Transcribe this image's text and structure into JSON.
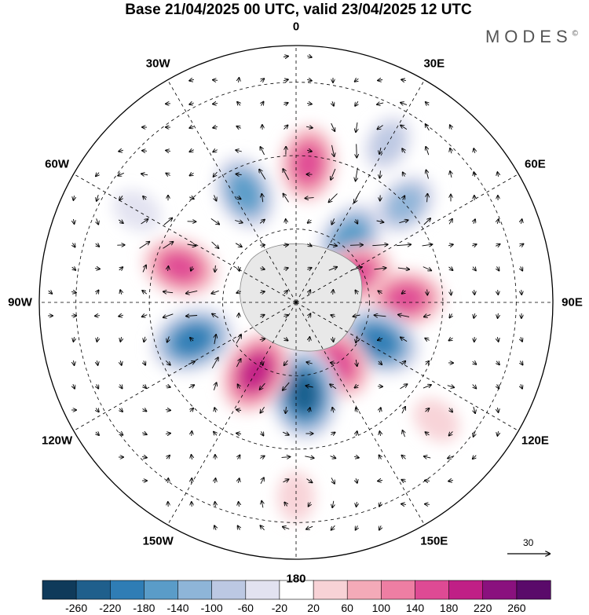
{
  "title": "Base 21/04/2025 00 UTC, valid 23/04/2025 12 UTC",
  "logo": "MODES",
  "logo_mark": "©",
  "longitude_labels": [
    "0",
    "30E",
    "60E",
    "90E",
    "120E",
    "150E",
    "180",
    "150W",
    "120W",
    "90W",
    "60W",
    "30W"
  ],
  "reference_vector": "30",
  "colorbar": {
    "ticks": [
      "-260",
      "-220",
      "-180",
      "-140",
      "-100",
      "-60",
      "-20",
      "20",
      "60",
      "100",
      "140",
      "180",
      "220",
      "260"
    ],
    "colors": [
      "#0f3a5a",
      "#1f5f8c",
      "#2f7db5",
      "#5a9cc8",
      "#8eb5d8",
      "#bcc8e3",
      "#e2e2f0",
      "#ffffff",
      "#f8d2d6",
      "#f4aab8",
      "#ee7ea3",
      "#de4a94",
      "#c01f86",
      "#8a117e",
      "#5a0a6a"
    ]
  },
  "field": {
    "anomalies": [
      {
        "lon": -25,
        "colat": 33,
        "value": -140
      },
      {
        "lon": 5,
        "colat": 38,
        "value": 140
      },
      {
        "lon": 40,
        "colat": 23,
        "value": -140
      },
      {
        "lon": 30,
        "colat": 50,
        "value": -60
      },
      {
        "lon": 48,
        "colat": 40,
        "value": -100
      },
      {
        "lon": 65,
        "colat": 18,
        "value": 140
      },
      {
        "lon": 88,
        "colat": 30,
        "value": 140
      },
      {
        "lon": 115,
        "colat": 25,
        "value": -180
      },
      {
        "lon": 145,
        "colat": 20,
        "value": 140
      },
      {
        "lon": 175,
        "colat": 25,
        "value": -220
      },
      {
        "lon": -150,
        "colat": 22,
        "value": 180
      },
      {
        "lon": -110,
        "colat": 30,
        "value": -180
      },
      {
        "lon": -73,
        "colat": 33,
        "value": 140
      },
      {
        "lon": 130,
        "colat": 50,
        "value": 20
      },
      {
        "lon": -60,
        "colat": 50,
        "value": -20
      },
      {
        "lon": 180,
        "colat": 53,
        "value": 20
      }
    ]
  }
}
